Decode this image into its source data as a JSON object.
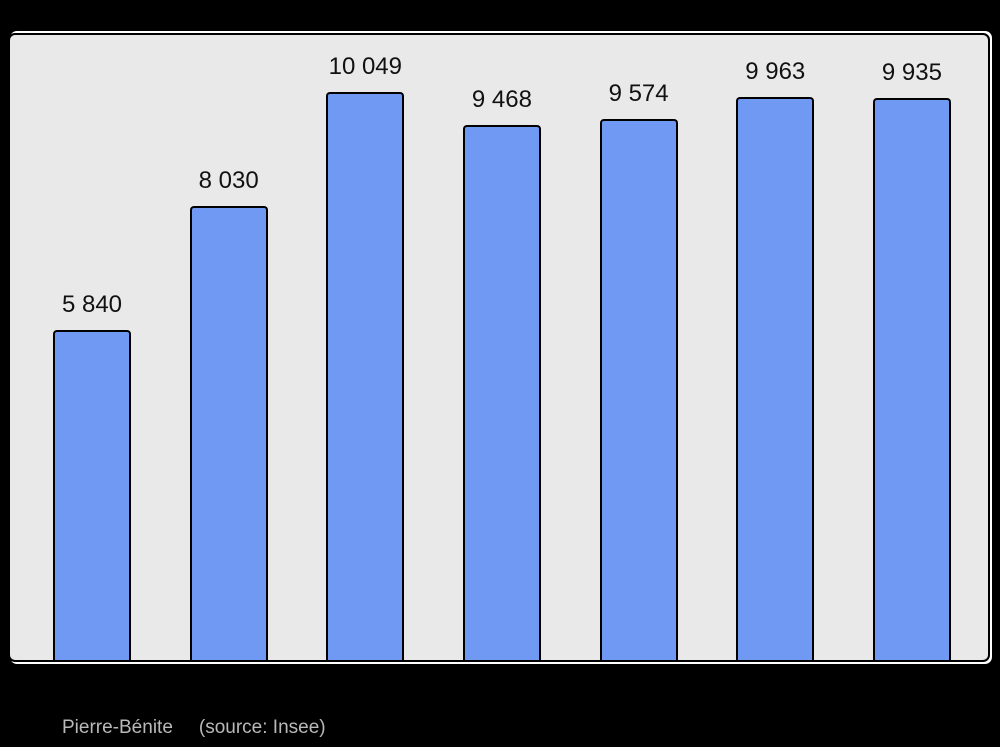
{
  "chart_data": {
    "type": "bar",
    "title": "",
    "categories": [
      "",
      "",
      "",
      "",
      "",
      "",
      ""
    ],
    "values": [
      5840,
      8030,
      10049,
      9468,
      9574,
      9963,
      9935
    ],
    "value_labels": [
      "5 840",
      "8 030",
      "10 049",
      "9 468",
      "9 574",
      "9 963",
      "9 935"
    ],
    "xlabel": "",
    "ylabel": "",
    "ylim": [
      0,
      10049
    ],
    "grid": false,
    "legend": "none",
    "colors": {
      "bar_fill": "#6f99f2",
      "bar_border": "#000000",
      "plot_background": "#e9e9e9",
      "frame_border": "#000000",
      "page_background": "#000000",
      "value_label_color": "#111111",
      "caption_color": "#b9b9b9"
    }
  },
  "caption": {
    "place": "Pierre-Bénite",
    "source": "(source: Insee)"
  }
}
